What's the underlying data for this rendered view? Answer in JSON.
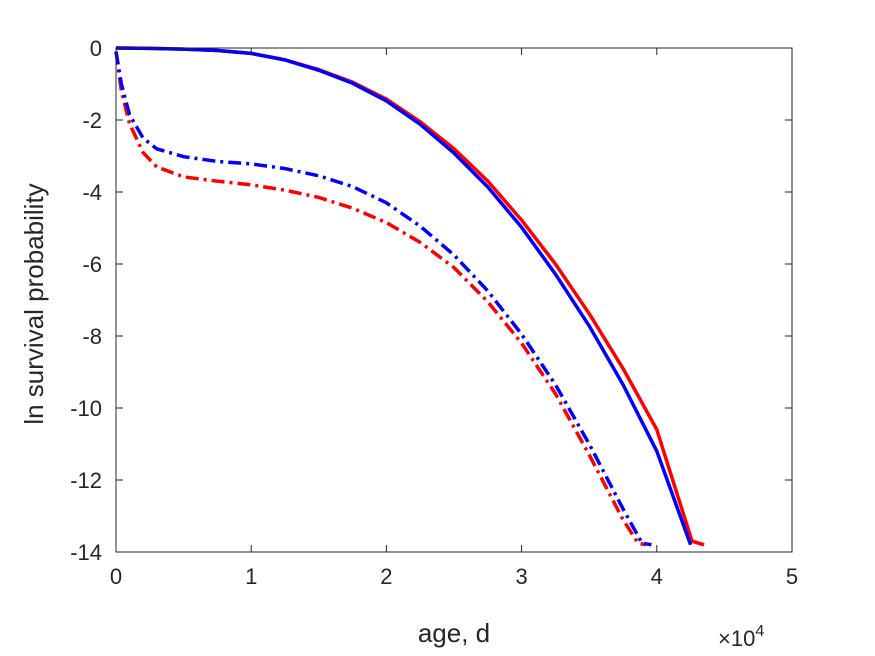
{
  "chart_data": {
    "type": "line",
    "title": "",
    "xlabel": "age, d",
    "ylabel": "ln survival probability",
    "x_exponent_label": "×10",
    "x_exponent_power": "4",
    "xlim": [
      0,
      50000
    ],
    "ylim": [
      -14,
      0
    ],
    "x_ticks": [
      0,
      10000,
      20000,
      30000,
      40000,
      50000
    ],
    "x_tick_labels": [
      "0",
      "1",
      "2",
      "3",
      "4",
      "5"
    ],
    "y_ticks": [
      0,
      -2,
      -4,
      -6,
      -8,
      -10,
      -12,
      -14
    ],
    "y_tick_labels": [
      "0",
      "-2",
      "-4",
      "-6",
      "-8",
      "-10",
      "-12",
      "-14"
    ],
    "grid": false,
    "legend": "none",
    "series": [
      {
        "color": "#ff0000",
        "dash": "solid",
        "points": [
          [
            0,
            0
          ],
          [
            2500,
            -0.01
          ],
          [
            5000,
            -0.03
          ],
          [
            7500,
            -0.07
          ],
          [
            10000,
            -0.15
          ],
          [
            12500,
            -0.33
          ],
          [
            15000,
            -0.6
          ],
          [
            17500,
            -0.95
          ],
          [
            20000,
            -1.42
          ],
          [
            22500,
            -2.05
          ],
          [
            25000,
            -2.8
          ],
          [
            27500,
            -3.7
          ],
          [
            30000,
            -4.78
          ],
          [
            32500,
            -6.0
          ],
          [
            35000,
            -7.38
          ],
          [
            37500,
            -8.9
          ],
          [
            40000,
            -10.6
          ],
          [
            42600,
            -13.7
          ],
          [
            43500,
            -13.8
          ]
        ]
      },
      {
        "color": "#0000ff",
        "dash": "solid",
        "points": [
          [
            0,
            0
          ],
          [
            2500,
            -0.01
          ],
          [
            5000,
            -0.03
          ],
          [
            7500,
            -0.07
          ],
          [
            10000,
            -0.15
          ],
          [
            12500,
            -0.33
          ],
          [
            15000,
            -0.62
          ],
          [
            17500,
            -0.98
          ],
          [
            20000,
            -1.47
          ],
          [
            22500,
            -2.12
          ],
          [
            25000,
            -2.92
          ],
          [
            27500,
            -3.86
          ],
          [
            30000,
            -4.98
          ],
          [
            32500,
            -6.28
          ],
          [
            35000,
            -7.72
          ],
          [
            37500,
            -9.35
          ],
          [
            40000,
            -11.2
          ],
          [
            42500,
            -13.8
          ]
        ]
      },
      {
        "color": "#ff0000",
        "dash": "dashdot",
        "points": [
          [
            0,
            -0.1
          ],
          [
            400,
            -1.2
          ],
          [
            1000,
            -2.1
          ],
          [
            2000,
            -2.9
          ],
          [
            3000,
            -3.3
          ],
          [
            5000,
            -3.58
          ],
          [
            7500,
            -3.7
          ],
          [
            10000,
            -3.8
          ],
          [
            12500,
            -3.95
          ],
          [
            15000,
            -4.15
          ],
          [
            17500,
            -4.45
          ],
          [
            20000,
            -4.85
          ],
          [
            22500,
            -5.4
          ],
          [
            25000,
            -6.1
          ],
          [
            27500,
            -7.05
          ],
          [
            30000,
            -8.2
          ],
          [
            32500,
            -9.6
          ],
          [
            35000,
            -11.3
          ],
          [
            37500,
            -13.1
          ],
          [
            38600,
            -13.75
          ],
          [
            39200,
            -13.8
          ]
        ]
      },
      {
        "color": "#0000ff",
        "dash": "dashdot",
        "points": [
          [
            0,
            -0.1
          ],
          [
            400,
            -1.0
          ],
          [
            1000,
            -1.85
          ],
          [
            2000,
            -2.5
          ],
          [
            3000,
            -2.8
          ],
          [
            5000,
            -3.02
          ],
          [
            7500,
            -3.15
          ],
          [
            10000,
            -3.22
          ],
          [
            12500,
            -3.35
          ],
          [
            15000,
            -3.55
          ],
          [
            17500,
            -3.85
          ],
          [
            20000,
            -4.3
          ],
          [
            22500,
            -4.95
          ],
          [
            25000,
            -5.75
          ],
          [
            27500,
            -6.75
          ],
          [
            30000,
            -7.95
          ],
          [
            32500,
            -9.35
          ],
          [
            35000,
            -11.0
          ],
          [
            37500,
            -12.8
          ],
          [
            38900,
            -13.75
          ],
          [
            39600,
            -13.8
          ]
        ]
      }
    ]
  }
}
